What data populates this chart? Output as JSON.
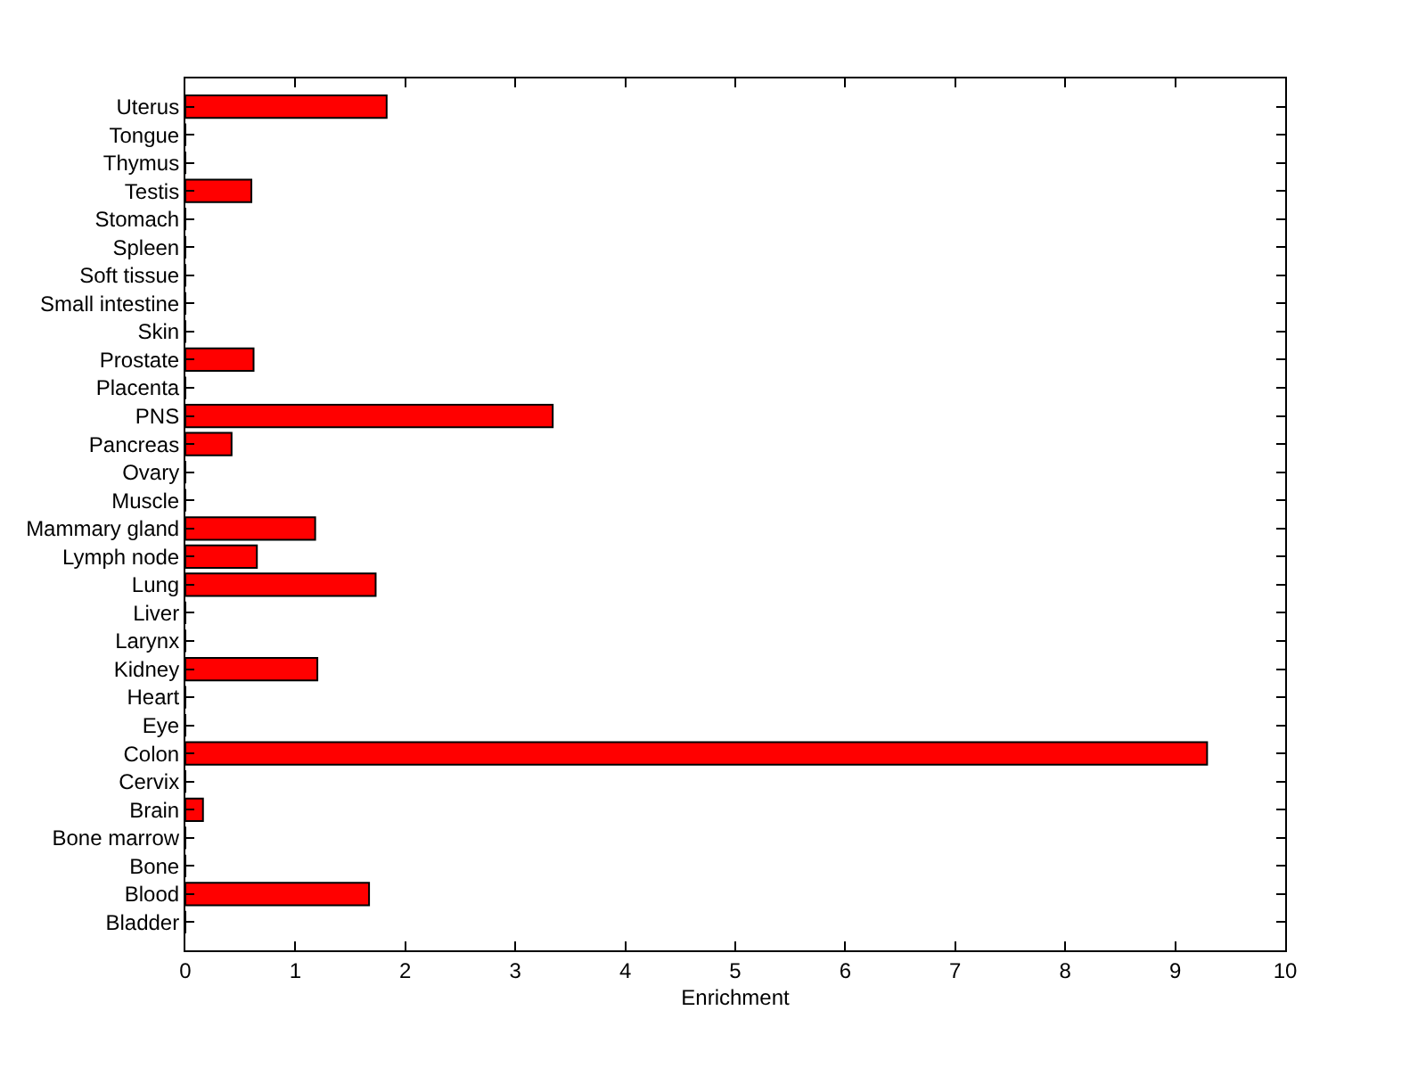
{
  "chart_data": {
    "type": "bar",
    "orientation": "horizontal",
    "xlabel": "Enrichment",
    "categories": [
      "Uterus",
      "Tongue",
      "Thymus",
      "Testis",
      "Stomach",
      "Spleen",
      "Soft tissue",
      "Small intestine",
      "Skin",
      "Prostate",
      "Placenta",
      "PNS",
      "Pancreas",
      "Ovary",
      "Muscle",
      "Mammary gland",
      "Lymph node",
      "Lung",
      "Liver",
      "Larynx",
      "Kidney",
      "Heart",
      "Eye",
      "Colon",
      "Cervix",
      "Brain",
      "Bone marrow",
      "Bone",
      "Blood",
      "Bladder"
    ],
    "values": [
      1.83,
      0,
      0,
      0.6,
      0,
      0,
      0,
      0,
      0,
      0.62,
      0,
      3.34,
      0.42,
      0,
      0,
      1.18,
      0.65,
      1.73,
      0,
      0,
      1.2,
      0,
      0,
      9.29,
      0,
      0.16,
      0,
      0,
      1.67,
      0
    ],
    "color": "#ff0000",
    "xlim": [
      0,
      10
    ],
    "xticks": [
      0,
      1,
      2,
      3,
      4,
      5,
      6,
      7,
      8,
      9,
      10
    ],
    "legend": false
  }
}
